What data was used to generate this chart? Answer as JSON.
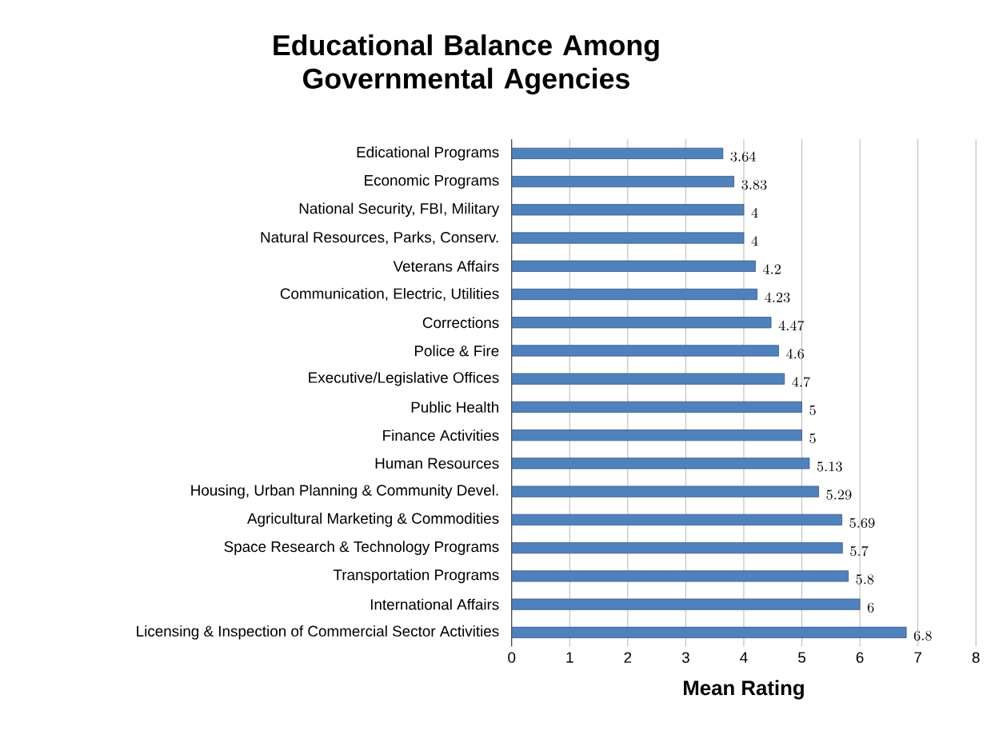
{
  "chart_data": {
    "type": "bar",
    "orientation": "horizontal",
    "title": "Educational Balance Among Governmental Agencies",
    "xlabel": "Mean Rating",
    "categories": [
      "Edicational Programs",
      "Economic Programs",
      "National Security, FBI, Military",
      "Natural Resources, Parks, Conserv.",
      "Veterans Affairs",
      "Communication, Electric, Utilities",
      "Corrections",
      "Police & Fire",
      "Executive/Legislative Offices",
      "Public Health",
      "Finance Activities",
      "Human Resources",
      "Housing, Urban Planning & Community Devel.",
      "Agricultural Marketing & Commodities",
      "Space Research & Technology Programs",
      "Transportation Programs",
      "International Affairs",
      "Licensing & Inspection of Commercial Sector Activities"
    ],
    "values": [
      3.64,
      3.83,
      4,
      4,
      4.2,
      4.23,
      4.47,
      4.6,
      4.7,
      5,
      5,
      5.13,
      5.29,
      5.69,
      5.7,
      5.8,
      6,
      6.8
    ],
    "color": "#4f81bd",
    "xlim": [
      0,
      8
    ],
    "xticks": [
      0,
      1,
      2,
      3,
      4,
      5,
      6,
      7,
      8
    ],
    "grid": "x",
    "data_labels": true
  }
}
